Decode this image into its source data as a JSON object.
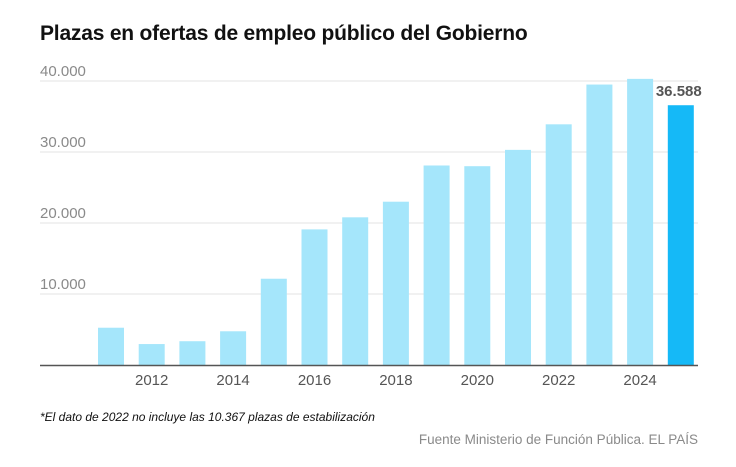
{
  "title": "Plazas en ofertas de empleo público del Gobierno",
  "footnote": "*El dato de 2022 no incluye las 10.367 plazas de estabilización",
  "source": "Fuente Ministerio de Función Pública. EL PAÍS",
  "colors": {
    "bar": "#a5e6fb",
    "highlight": "#15b9f7",
    "grid": "#e3e3e3",
    "axis": "#555555"
  },
  "chart_data": {
    "type": "bar",
    "title": "Plazas en ofertas de empleo público del Gobierno",
    "xlabel": "",
    "ylabel": "",
    "categories": [
      "2011",
      "2012",
      "2013",
      "2014",
      "2015",
      "2016",
      "2017",
      "2018",
      "2019",
      "2020",
      "2021",
      "2022",
      "2023",
      "2024",
      "2025"
    ],
    "values": [
      5250,
      2950,
      3350,
      4750,
      12150,
      19100,
      20800,
      23000,
      28100,
      28000,
      30300,
      33900,
      39500,
      40300,
      36588
    ],
    "x_tick_labels": [
      "2012",
      "2014",
      "2016",
      "2018",
      "2020",
      "2022",
      "2024"
    ],
    "y_ticks": [
      10000,
      20000,
      30000,
      40000
    ],
    "y_tick_labels": [
      "10.000",
      "20.000",
      "30.000",
      "40.000"
    ],
    "ylim": [
      0,
      40000
    ],
    "highlight_index": 14,
    "highlight_label": "36.588",
    "grid": true,
    "legend": "none"
  }
}
